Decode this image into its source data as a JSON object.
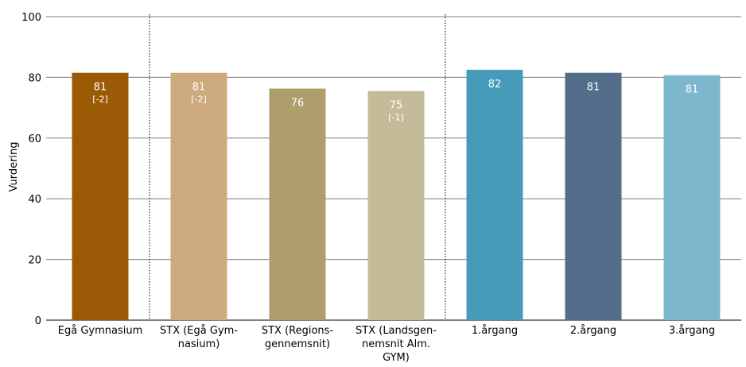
{
  "chart_data": {
    "type": "bar",
    "ylabel": "Vurdering",
    "ylim": [
      0,
      100
    ],
    "yticks": [
      "0",
      "20",
      "40",
      "60",
      "80",
      "100"
    ],
    "grid": true,
    "categories": [
      [
        "Egå Gymnasium"
      ],
      [
        "STX (Egå Gym-",
        "nasium)"
      ],
      [
        "STX (Regions-",
        "gennemsnit)"
      ],
      [
        "STX (Landsgen-",
        "nemsnit Alm.",
        "GYM)"
      ],
      [
        "1.årgang"
      ],
      [
        "2.årgang"
      ],
      [
        "3.årgang"
      ]
    ],
    "values": [
      81.5,
      81.5,
      76.3,
      75.5,
      82.5,
      81.5,
      80.7
    ],
    "value_labels": [
      "81",
      "81",
      "76",
      "75",
      "82",
      "81",
      "81"
    ],
    "diff_labels": [
      "[-2]",
      "[-2]",
      "",
      "[-1]",
      "",
      "",
      ""
    ],
    "colors": [
      "#9b5a05",
      "#cdaa7e",
      "#ad9e6c",
      "#c4bc98",
      "#459bb9",
      "#526e8a",
      "#7cb7cd"
    ],
    "separators_after": [
      0,
      3
    ]
  }
}
